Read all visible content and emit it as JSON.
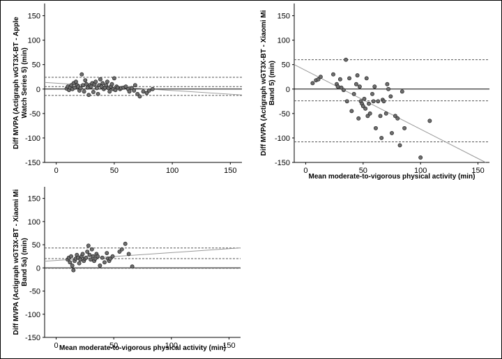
{
  "chart_data": [
    {
      "type": "scatter",
      "title": "",
      "ylabel": [
        "Diff MVPA (Actigraph wGT3X-BT - Apple",
        "Watch Series 5) (min)"
      ],
      "xlabel": "",
      "xlim": [
        -10,
        160
      ],
      "ylim": [
        -150,
        175
      ],
      "xticks": [
        0,
        50,
        100,
        150
      ],
      "yticks": [
        -150,
        -100,
        -50,
        0,
        50,
        100,
        150
      ],
      "grid": false,
      "points": [
        [
          9,
          1
        ],
        [
          10,
          5
        ],
        [
          11,
          -2
        ],
        [
          12,
          3
        ],
        [
          13,
          8
        ],
        [
          14,
          0
        ],
        [
          15,
          12
        ],
        [
          16,
          3
        ],
        [
          17,
          15
        ],
        [
          18,
          8
        ],
        [
          19,
          5
        ],
        [
          20,
          -3
        ],
        [
          21,
          2
        ],
        [
          22,
          30
        ],
        [
          23,
          8
        ],
        [
          24,
          -5
        ],
        [
          25,
          18
        ],
        [
          26,
          10
        ],
        [
          27,
          3
        ],
        [
          28,
          -12
        ],
        [
          29,
          8
        ],
        [
          30,
          5
        ],
        [
          31,
          12
        ],
        [
          32,
          -6
        ],
        [
          33,
          10
        ],
        [
          34,
          15
        ],
        [
          35,
          2
        ],
        [
          36,
          -10
        ],
        [
          37,
          8
        ],
        [
          38,
          20
        ],
        [
          39,
          5
        ],
        [
          40,
          12
        ],
        [
          41,
          0
        ],
        [
          42,
          3
        ],
        [
          43,
          8
        ],
        [
          44,
          15
        ],
        [
          45,
          2
        ],
        [
          46,
          -5
        ],
        [
          47,
          5
        ],
        [
          48,
          10
        ],
        [
          49,
          0
        ],
        [
          50,
          22
        ],
        [
          51,
          -2
        ],
        [
          52,
          5
        ],
        [
          53,
          3
        ],
        [
          55,
          0
        ],
        [
          56,
          2
        ],
        [
          58,
          3
        ],
        [
          60,
          5
        ],
        [
          62,
          0
        ],
        [
          63,
          -5
        ],
        [
          65,
          2
        ],
        [
          67,
          -3
        ],
        [
          68,
          8
        ],
        [
          70,
          -10
        ],
        [
          72,
          -15
        ],
        [
          75,
          -5
        ],
        [
          78,
          -8
        ],
        [
          80,
          -3
        ],
        [
          83,
          0
        ]
      ],
      "reference_lines": {
        "bias": 5,
        "upper_loa": 24,
        "lower_loa": -13,
        "zero": 0
      },
      "regression": {
        "y_at_x0": 12,
        "slope": -0.15
      }
    },
    {
      "type": "scatter",
      "title": "",
      "ylabel": [
        "Diff MVPA (Actigraph wGT3X-BT - Xiaomi Mi",
        "Band 5) (min)"
      ],
      "xlabel": "Mean moderate-to-vigorous physical activity (min)",
      "xlim": [
        -10,
        160
      ],
      "ylim": [
        -150,
        175
      ],
      "xticks": [
        0,
        50,
        100,
        150
      ],
      "yticks": [
        -150,
        -100,
        -50,
        0,
        50,
        100,
        150
      ],
      "grid": false,
      "points": [
        [
          6,
          12
        ],
        [
          9,
          18
        ],
        [
          11,
          20
        ],
        [
          13,
          25
        ],
        [
          24,
          30
        ],
        [
          27,
          10
        ],
        [
          28,
          5
        ],
        [
          30,
          20
        ],
        [
          31,
          3
        ],
        [
          33,
          -2
        ],
        [
          35,
          60
        ],
        [
          36,
          -25
        ],
        [
          38,
          22
        ],
        [
          40,
          -45
        ],
        [
          42,
          -10
        ],
        [
          44,
          10
        ],
        [
          45,
          28
        ],
        [
          46,
          -60
        ],
        [
          47,
          5
        ],
        [
          48,
          -25
        ],
        [
          49,
          -30
        ],
        [
          50,
          -35
        ],
        [
          51,
          -20
        ],
        [
          52,
          -40
        ],
        [
          53,
          22
        ],
        [
          54,
          -55
        ],
        [
          55,
          -30
        ],
        [
          56,
          -50
        ],
        [
          58,
          -10
        ],
        [
          59,
          -25
        ],
        [
          60,
          5
        ],
        [
          61,
          -80
        ],
        [
          63,
          -25
        ],
        [
          65,
          -55
        ],
        [
          66,
          -100
        ],
        [
          67,
          -22
        ],
        [
          68,
          -25
        ],
        [
          70,
          -50
        ],
        [
          71,
          10
        ],
        [
          72,
          0
        ],
        [
          74,
          -15
        ],
        [
          75,
          -90
        ],
        [
          78,
          -55
        ],
        [
          80,
          -60
        ],
        [
          82,
          -115
        ],
        [
          84,
          -5
        ],
        [
          86,
          -80
        ],
        [
          100,
          -140
        ],
        [
          108,
          -65
        ]
      ],
      "reference_lines": {
        "bias": -24,
        "upper_loa": 60,
        "lower_loa": -108,
        "zero": 0
      },
      "regression": {
        "y_at_x0": 38,
        "slope": -1.2
      }
    },
    {
      "type": "scatter",
      "title": "",
      "ylabel": [
        "Diff MVPA (Actigraph wGT3X-BT - Xiaomi Mi",
        "Band 5a) (min)"
      ],
      "xlabel": "Mean moderate-to-vigorous physical activity (min)",
      "xlim": [
        -10,
        160
      ],
      "ylim": [
        -150,
        175
      ],
      "xticks": [
        0,
        50,
        100,
        150
      ],
      "yticks": [
        -150,
        -100,
        -50,
        0,
        50,
        100,
        150
      ],
      "grid": false,
      "points": [
        [
          10,
          18
        ],
        [
          11,
          22
        ],
        [
          12,
          12
        ],
        [
          13,
          25
        ],
        [
          14,
          5
        ],
        [
          15,
          -5
        ],
        [
          16,
          15
        ],
        [
          17,
          20
        ],
        [
          18,
          28
        ],
        [
          19,
          22
        ],
        [
          20,
          10
        ],
        [
          21,
          18
        ],
        [
          22,
          25
        ],
        [
          23,
          30
        ],
        [
          24,
          15
        ],
        [
          25,
          20
        ],
        [
          26,
          22
        ],
        [
          27,
          35
        ],
        [
          28,
          48
        ],
        [
          29,
          28
        ],
        [
          30,
          18
        ],
        [
          31,
          40
        ],
        [
          32,
          25
        ],
        [
          33,
          15
        ],
        [
          34,
          20
        ],
        [
          35,
          30
        ],
        [
          36,
          25
        ],
        [
          38,
          5
        ],
        [
          40,
          22
        ],
        [
          42,
          12
        ],
        [
          44,
          32
        ],
        [
          45,
          20
        ],
        [
          46,
          15
        ],
        [
          47,
          20
        ],
        [
          49,
          25
        ],
        [
          55,
          35
        ],
        [
          57,
          40
        ],
        [
          60,
          52
        ],
        [
          63,
          30
        ],
        [
          66,
          3
        ]
      ],
      "reference_lines": {
        "bias": 20,
        "upper_loa": 43,
        "lower_loa": 0,
        "zero": 0
      },
      "regression": {
        "y_at_x0": 16,
        "slope": 0.17
      }
    }
  ]
}
